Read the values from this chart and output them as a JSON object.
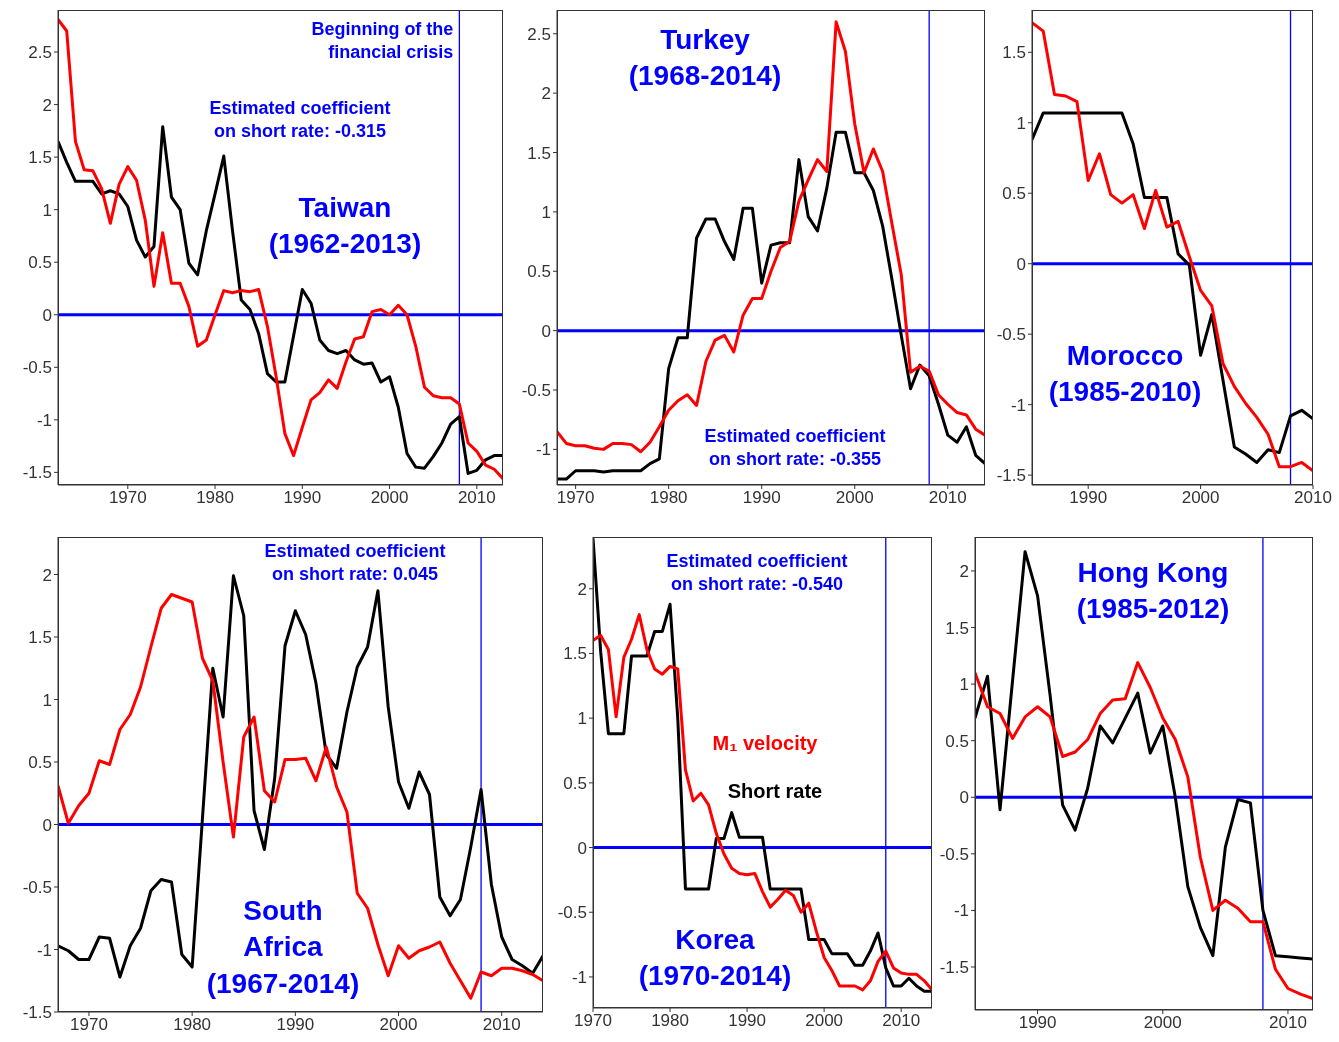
{
  "chart_data": [
    {
      "type": "line",
      "title": "Taiwan\n(1962-2013)",
      "annotations": [
        "Estimated coefficient\non short rate: -0.315"
      ],
      "x": [
        1962,
        1963,
        1964,
        1965,
        1966,
        1967,
        1968,
        1969,
        1970,
        1971,
        1972,
        1973,
        1974,
        1975,
        1976,
        1977,
        1978,
        1979,
        1980,
        1981,
        1982,
        1983,
        1984,
        1985,
        1986,
        1987,
        1988,
        1989,
        1990,
        1991,
        1992,
        1993,
        1994,
        1995,
        1996,
        1997,
        1998,
        1999,
        2000,
        2001,
        2002,
        2003,
        2004,
        2005,
        2006,
        2007,
        2008,
        2009,
        2010,
        2011,
        2012,
        2013
      ],
      "series": [
        {
          "color": "#000000",
          "values": [
            1.65,
            1.45,
            1.27,
            1.27,
            1.27,
            1.15,
            1.18,
            1.15,
            1.03,
            0.71,
            0.55,
            0.65,
            1.79,
            1.12,
            1.0,
            0.49,
            0.38,
            0.8,
            1.15,
            1.51,
            0.8,
            0.14,
            0.05,
            -0.18,
            -0.56,
            -0.64,
            -0.64,
            -0.2,
            0.24,
            0.11,
            -0.24,
            -0.34,
            -0.37,
            -0.34,
            -0.43,
            -0.47,
            -0.46,
            -0.64,
            -0.59,
            -0.88,
            -1.32,
            -1.45,
            -1.46,
            -1.35,
            -1.22,
            -1.04,
            -0.97,
            -1.51,
            -1.48,
            -1.38,
            -1.34,
            -1.34
          ]
        },
        {
          "color": "#ff0000",
          "values": [
            2.81,
            2.7,
            1.65,
            1.38,
            1.37,
            1.2,
            0.87,
            1.24,
            1.41,
            1.28,
            0.9,
            0.27,
            0.78,
            0.3,
            0.3,
            0.08,
            -0.3,
            -0.24,
            0.0,
            0.23,
            0.21,
            0.23,
            0.22,
            0.24,
            -0.11,
            -0.59,
            -1.13,
            -1.34,
            -1.07,
            -0.81,
            -0.74,
            -0.62,
            -0.7,
            -0.45,
            -0.23,
            -0.21,
            0.03,
            0.05,
            0.0,
            0.09,
            0.0,
            -0.3,
            -0.69,
            -0.77,
            -0.79,
            -0.79,
            -0.85,
            -1.22,
            -1.3,
            -1.43,
            -1.47,
            -1.56
          ]
        }
      ],
      "xlim": [
        1962,
        2013
      ],
      "xticks": [
        1970,
        1980,
        1990,
        2000,
        2010
      ],
      "ylim": [
        -1.62,
        2.9
      ],
      "yticks": [
        -1.5,
        -1,
        -0.5,
        0,
        0.5,
        1,
        1.5,
        2,
        2.5
      ],
      "ref_lines": [
        {
          "axis": "y",
          "value": 0,
          "color": "#0000ff"
        },
        {
          "axis": "x",
          "value": 2008,
          "color": "#0000ff",
          "label": "Beginning of the\nfinancial crisis"
        }
      ]
    },
    {
      "type": "line",
      "title": "Turkey\n(1968-2014)",
      "annotations": [
        "Estimated coefficient\non short rate: -0.355"
      ],
      "x": [
        1968,
        1969,
        1970,
        1971,
        1972,
        1973,
        1974,
        1975,
        1976,
        1977,
        1978,
        1979,
        1980,
        1981,
        1982,
        1983,
        1984,
        1985,
        1986,
        1987,
        1988,
        1989,
        1990,
        1991,
        1992,
        1993,
        1994,
        1995,
        1996,
        1997,
        1998,
        1999,
        2000,
        2001,
        2002,
        2003,
        2004,
        2005,
        2006,
        2007,
        2008,
        2009,
        2010,
        2011,
        2012,
        2013,
        2014
      ],
      "series": [
        {
          "color": "#000000",
          "values": [
            -1.25,
            -1.25,
            -1.18,
            -1.18,
            -1.18,
            -1.19,
            -1.18,
            -1.18,
            -1.18,
            -1.18,
            -1.12,
            -1.08,
            -0.32,
            -0.06,
            -0.06,
            0.78,
            0.94,
            0.94,
            0.75,
            0.6,
            1.03,
            1.03,
            0.4,
            0.72,
            0.74,
            0.74,
            1.44,
            0.96,
            0.84,
            1.2,
            1.67,
            1.67,
            1.33,
            1.33,
            1.18,
            0.88,
            0.43,
            -0.04,
            -0.49,
            -0.29,
            -0.38,
            -0.62,
            -0.88,
            -0.94,
            -0.81,
            -1.05,
            -1.12
          ]
        },
        {
          "color": "#ff0000",
          "values": [
            -0.85,
            -0.95,
            -0.97,
            -0.97,
            -0.99,
            -1.0,
            -0.95,
            -0.95,
            -0.96,
            -1.02,
            -0.94,
            -0.81,
            -0.67,
            -0.59,
            -0.54,
            -0.63,
            -0.26,
            -0.08,
            -0.04,
            -0.18,
            0.13,
            0.27,
            0.27,
            0.5,
            0.7,
            0.75,
            1.09,
            1.27,
            1.44,
            1.34,
            2.6,
            2.35,
            1.74,
            1.33,
            1.53,
            1.34,
            0.9,
            0.47,
            -0.35,
            -0.3,
            -0.34,
            -0.54,
            -0.62,
            -0.69,
            -0.71,
            -0.83,
            -0.88
          ]
        }
      ],
      "xlim": [
        1968,
        2014
      ],
      "xticks": [
        1970,
        1980,
        1990,
        2000,
        2010
      ],
      "ylim": [
        -1.3,
        2.7
      ],
      "yticks": [
        -1,
        -0.5,
        0,
        0.5,
        1,
        1.5,
        2,
        2.5
      ],
      "ref_lines": [
        {
          "axis": "y",
          "value": 0,
          "color": "#0000ff"
        },
        {
          "axis": "x",
          "value": 2008,
          "color": "#0000ff"
        }
      ]
    },
    {
      "type": "line",
      "title": "Morocco\n(1985-2010)",
      "x": [
        1985,
        1986,
        1987,
        1988,
        1989,
        1990,
        1991,
        1992,
        1993,
        1994,
        1995,
        1996,
        1997,
        1998,
        1999,
        2000,
        2001,
        2002,
        2003,
        2004,
        2005,
        2006,
        2007,
        2008,
        2009,
        2010
      ],
      "series": [
        {
          "color": "#000000",
          "values": [
            0.88,
            1.07,
            1.07,
            1.07,
            1.07,
            1.07,
            1.07,
            1.07,
            1.07,
            0.85,
            0.47,
            0.47,
            0.47,
            0.07,
            -0.01,
            -0.65,
            -0.36,
            -0.83,
            -1.3,
            -1.35,
            -1.41,
            -1.32,
            -1.34,
            -1.08,
            -1.04,
            -1.1
          ]
        },
        {
          "color": "#ff0000",
          "values": [
            1.71,
            1.65,
            1.2,
            1.19,
            1.15,
            0.59,
            0.78,
            0.49,
            0.43,
            0.49,
            0.25,
            0.52,
            0.26,
            0.3,
            0.05,
            -0.19,
            -0.3,
            -0.71,
            -0.87,
            -0.99,
            -1.09,
            -1.21,
            -1.44,
            -1.44,
            -1.41,
            -1.47
          ]
        }
      ],
      "xlim": [
        1985,
        2010
      ],
      "xticks": [
        1990,
        2000,
        2010
      ],
      "ylim": [
        -1.57,
        1.8
      ],
      "yticks": [
        -1.5,
        -1,
        -0.5,
        0,
        0.5,
        1,
        1.5
      ],
      "ref_lines": [
        {
          "axis": "y",
          "value": 0,
          "color": "#0000ff"
        },
        {
          "axis": "x",
          "value": 2008,
          "color": "#0000ff"
        }
      ]
    },
    {
      "type": "line",
      "title": "South\nAfrica\n(1967-2014)",
      "annotations": [
        "Estimated coefficient\non short rate: 0.045"
      ],
      "x": [
        1967,
        1968,
        1969,
        1970,
        1971,
        1972,
        1973,
        1974,
        1975,
        1976,
        1977,
        1978,
        1979,
        1980,
        1981,
        1982,
        1983,
        1984,
        1985,
        1986,
        1987,
        1988,
        1989,
        1990,
        1991,
        1992,
        1993,
        1994,
        1995,
        1996,
        1997,
        1998,
        1999,
        2000,
        2001,
        2002,
        2003,
        2004,
        2005,
        2006,
        2007,
        2008,
        2009,
        2010,
        2011,
        2012,
        2013,
        2014
      ],
      "series": [
        {
          "color": "#000000",
          "values": [
            -0.97,
            -1.01,
            -1.08,
            -1.08,
            -0.9,
            -0.91,
            -1.22,
            -0.97,
            -0.83,
            -0.53,
            -0.44,
            -0.46,
            -1.04,
            -1.14,
            0.05,
            1.25,
            0.86,
            1.99,
            1.67,
            0.11,
            -0.2,
            0.37,
            1.43,
            1.71,
            1.52,
            1.13,
            0.56,
            0.45,
            0.9,
            1.26,
            1.42,
            1.87,
            0.94,
            0.34,
            0.13,
            0.42,
            0.24,
            -0.58,
            -0.73,
            -0.6,
            -0.18,
            0.28,
            -0.48,
            -0.9,
            -1.08,
            -1.13,
            -1.19,
            -1.05
          ]
        },
        {
          "color": "#ff0000",
          "values": [
            0.31,
            0.01,
            0.15,
            0.25,
            0.51,
            0.48,
            0.76,
            0.88,
            1.1,
            1.42,
            1.73,
            1.84,
            1.81,
            1.78,
            1.33,
            1.15,
            0.5,
            -0.1,
            0.7,
            0.86,
            0.27,
            0.18,
            0.52,
            0.52,
            0.53,
            0.35,
            0.62,
            0.3,
            0.1,
            -0.55,
            -0.67,
            -0.96,
            -1.21,
            -0.97,
            -1.07,
            -1.01,
            -0.98,
            -0.94,
            -1.11,
            -1.25,
            -1.39,
            -1.18,
            -1.21,
            -1.15,
            -1.15,
            -1.17,
            -1.2,
            -1.25
          ]
        }
      ],
      "xlim": [
        1967,
        2014
      ],
      "xticks": [
        1970,
        1980,
        1990,
        2000,
        2010
      ],
      "ylim": [
        -1.5,
        2.3
      ],
      "yticks": [
        -1.5,
        -1,
        -0.5,
        0,
        0.5,
        1,
        1.5,
        2
      ],
      "ref_lines": [
        {
          "axis": "y",
          "value": 0,
          "color": "#0000ff"
        },
        {
          "axis": "x",
          "value": 2008,
          "color": "#0000ff"
        }
      ]
    },
    {
      "type": "line",
      "title": "Korea\n(1970-2014)",
      "annotations": [
        "Estimated coefficient\non short rate: -0.540"
      ],
      "x": [
        1970,
        1971,
        1972,
        1973,
        1974,
        1975,
        1976,
        1977,
        1978,
        1979,
        1980,
        1981,
        1982,
        1983,
        1984,
        1985,
        1986,
        1987,
        1988,
        1989,
        1990,
        1991,
        1992,
        1993,
        1994,
        1995,
        1996,
        1997,
        1998,
        1999,
        2000,
        2001,
        2002,
        2003,
        2004,
        2005,
        2006,
        2007,
        2008,
        2009,
        2010,
        2011,
        2012,
        2013,
        2014
      ],
      "series": [
        {
          "name": "Short rate",
          "color": "#000000",
          "values": [
            2.39,
            1.51,
            0.88,
            0.88,
            0.88,
            1.48,
            1.48,
            1.48,
            1.67,
            1.67,
            1.88,
            1.0,
            -0.32,
            -0.32,
            -0.32,
            -0.32,
            0.07,
            0.07,
            0.27,
            0.08,
            0.08,
            0.08,
            0.08,
            -0.32,
            -0.32,
            -0.32,
            -0.32,
            -0.32,
            -0.71,
            -0.71,
            -0.71,
            -0.82,
            -0.82,
            -0.82,
            -0.91,
            -0.91,
            -0.8,
            -0.66,
            -0.93,
            -1.07,
            -1.07,
            -1.01,
            -1.07,
            -1.11,
            -1.11
          ]
        },
        {
          "name": "M₁ velocity",
          "color": "#ff0000",
          "values": [
            1.6,
            1.64,
            1.53,
            1.01,
            1.47,
            1.61,
            1.8,
            1.53,
            1.38,
            1.34,
            1.4,
            1.38,
            0.6,
            0.36,
            0.42,
            0.33,
            0.11,
            -0.05,
            -0.16,
            -0.2,
            -0.21,
            -0.2,
            -0.34,
            -0.46,
            -0.4,
            -0.33,
            -0.37,
            -0.5,
            -0.43,
            -0.65,
            -0.85,
            -0.95,
            -1.07,
            -1.07,
            -1.07,
            -1.1,
            -1.03,
            -0.88,
            -0.8,
            -0.93,
            -0.97,
            -0.98,
            -0.98,
            -1.03,
            -1.1
          ]
        }
      ],
      "xlim": [
        1970,
        2014
      ],
      "xticks": [
        1970,
        1980,
        1990,
        2000,
        2010
      ],
      "ylim": [
        -1.24,
        2.4
      ],
      "yticks": [
        -1,
        -0.5,
        0,
        0.5,
        1,
        1.5,
        2
      ],
      "ref_lines": [
        {
          "axis": "y",
          "value": 0,
          "color": "#0000ff"
        },
        {
          "axis": "x",
          "value": 2008,
          "color": "#0000ff"
        }
      ]
    },
    {
      "type": "line",
      "title": "Hong Kong\n(1985-2012)",
      "x": [
        1985,
        1986,
        1987,
        1988,
        1989,
        1990,
        1991,
        1992,
        1993,
        1994,
        1995,
        1996,
        1997,
        1998,
        1999,
        2000,
        2001,
        2002,
        2003,
        2004,
        2005,
        2006,
        2007,
        2008,
        2009,
        2010,
        2011,
        2012
      ],
      "series": [
        {
          "color": "#000000",
          "values": [
            0.7,
            1.07,
            -0.11,
            1.03,
            2.17,
            1.78,
            0.9,
            -0.07,
            -0.29,
            0.08,
            0.63,
            0.48,
            0.7,
            0.92,
            0.39,
            0.63,
            0.0,
            -0.79,
            -1.15,
            -1.4,
            -0.44,
            -0.02,
            -0.05,
            -1.0,
            -1.4,
            -1.41,
            -1.42,
            -1.43
          ]
        },
        {
          "color": "#ff0000",
          "values": [
            1.1,
            0.8,
            0.74,
            0.52,
            0.71,
            0.8,
            0.71,
            0.36,
            0.4,
            0.51,
            0.74,
            0.86,
            0.87,
            1.19,
            0.97,
            0.7,
            0.51,
            0.18,
            -0.53,
            -1.0,
            -0.91,
            -0.98,
            -1.1,
            -1.1,
            -1.52,
            -1.69,
            -1.74,
            -1.78
          ]
        }
      ],
      "xlim": [
        1985,
        2012
      ],
      "xticks": [
        1990,
        2000,
        2010
      ],
      "ylim": [
        -1.88,
        2.3
      ],
      "yticks": [
        -1.5,
        -1,
        -0.5,
        0,
        0.5,
        1,
        1.5,
        2
      ],
      "ref_lines": [
        {
          "axis": "y",
          "value": 0,
          "color": "#0000ff"
        },
        {
          "axis": "x",
          "value": 2008,
          "color": "#0000ff"
        }
      ]
    }
  ]
}
